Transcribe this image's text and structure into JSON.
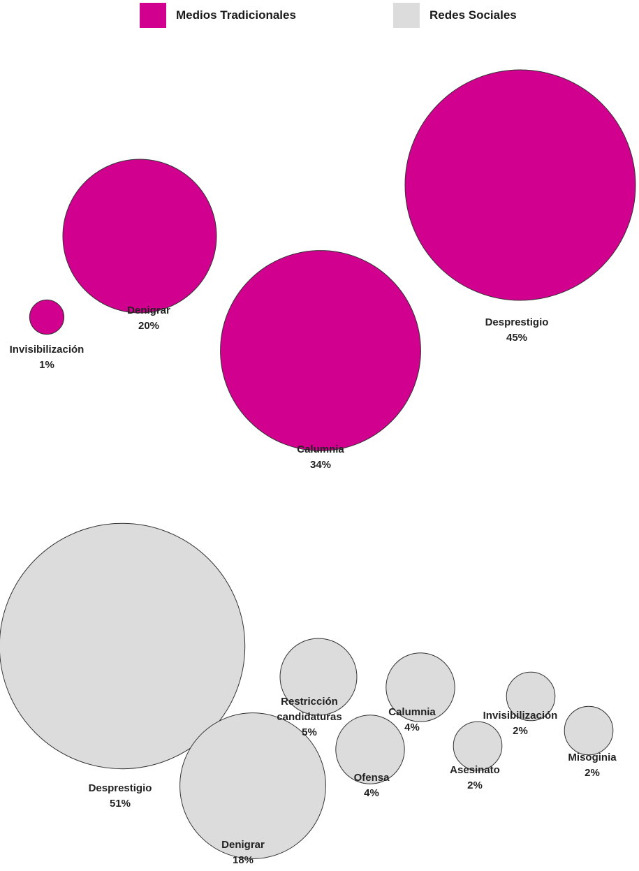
{
  "legend": {
    "medios_label": "Medios Tradicionales",
    "redes_label": "Redes Sociales"
  },
  "colors": {
    "medios": "#d1008f",
    "redes": "#dcdcdc",
    "stroke": "#333333"
  },
  "chart_data": [
    {
      "type": "bubble",
      "series": [
        {
          "name": "Medios Tradicionales",
          "points": [
            {
              "category": "Invisibilización",
              "value": 1,
              "label": "1%"
            },
            {
              "category": "Denigrar",
              "value": 20,
              "label": "20%"
            },
            {
              "category": "Calumnia",
              "value": 34,
              "label": "34%"
            },
            {
              "category": "Desprestigio",
              "value": 45,
              "label": "45%"
            }
          ]
        }
      ]
    },
    {
      "type": "bubble",
      "series": [
        {
          "name": "Redes Sociales",
          "points": [
            {
              "category": "Desprestigio",
              "value": 51,
              "label": "51%"
            },
            {
              "category": "Denigrar",
              "value": 18,
              "label": "18%"
            },
            {
              "category": "Restricción candidaturas",
              "value": 5,
              "label": "5%"
            },
            {
              "category": "Ofensa",
              "value": 4,
              "label": "4%"
            },
            {
              "category": "Calumnia",
              "value": 4,
              "label": "4%"
            },
            {
              "category": "Asesinato",
              "value": 2,
              "label": "2%"
            },
            {
              "category": "Invisibilización",
              "value": 2,
              "label": "2%"
            },
            {
              "category": "Misoginia",
              "value": 2,
              "label": "2%"
            }
          ]
        }
      ]
    }
  ]
}
